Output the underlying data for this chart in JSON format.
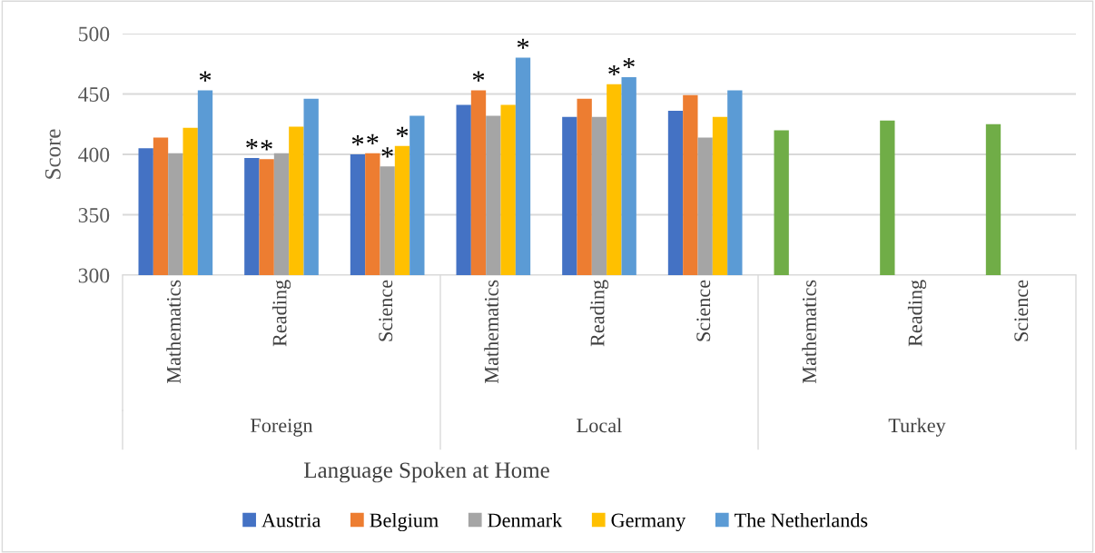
{
  "chart_data": {
    "type": "bar",
    "xlabel": "Language Spoken at Home",
    "ylabel": "Score",
    "categories": [
      "Mathematics",
      "Reading",
      "Science",
      "Mathematics",
      "Reading",
      "Science",
      "Mathematics",
      "Reading",
      "Science"
    ],
    "annotations": [
      "Foreign",
      "Local",
      "Turkey"
    ],
    "series": [
      {
        "name": "Austria",
        "color": "#4472c4",
        "values": [
          405,
          397,
          400,
          441,
          431,
          436,
          null,
          null,
          null
        ],
        "value_labels": [
          null,
          "*",
          "*",
          null,
          null,
          null,
          null,
          null,
          null
        ]
      },
      {
        "name": "Belgium",
        "color": "#ed7d31",
        "values": [
          414,
          396,
          401,
          453,
          446,
          449,
          null,
          null,
          null
        ],
        "value_labels": [
          null,
          "*",
          "*",
          "*",
          null,
          null,
          null,
          null,
          null
        ]
      },
      {
        "name": "Denmark",
        "color": "#a5a5a5",
        "values": [
          401,
          401,
          390,
          432,
          431,
          414,
          null,
          null,
          null
        ],
        "value_labels": [
          null,
          null,
          "*",
          null,
          null,
          null,
          null,
          null,
          null
        ]
      },
      {
        "name": "Germany",
        "color": "#ffc000",
        "values": [
          422,
          423,
          407,
          441,
          458,
          431,
          null,
          null,
          null
        ],
        "value_labels": [
          null,
          null,
          "*",
          null,
          "*",
          null,
          null,
          null,
          null
        ]
      },
      {
        "name": "The Netherlands",
        "color": "#5b9bd5",
        "values": [
          453,
          446,
          432,
          480,
          464,
          453,
          null,
          null,
          null
        ],
        "value_labels": [
          "*",
          null,
          null,
          "*",
          "*",
          null,
          null,
          null,
          null
        ]
      },
      {
        "color": "#70ad47",
        "values": [
          null,
          null,
          null,
          null,
          null,
          null,
          420,
          428,
          425
        ]
      }
    ],
    "ylim": [
      300,
      500
    ],
    "yticks": [
      300,
      350,
      400,
      450,
      500
    ],
    "grid": "y",
    "legend": "bottom"
  }
}
